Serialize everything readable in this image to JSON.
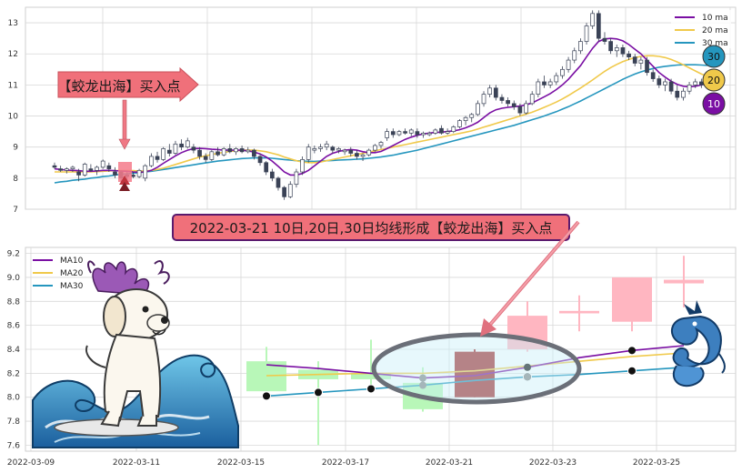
{
  "colors": {
    "ma10": "#7a0fa3",
    "ma20": "#f0c94a",
    "ma30": "#2596be",
    "candle_dark": "#3a4256",
    "up_light": "#ffb6c1",
    "down_light": "#b8f7b8",
    "highlight_red": "#a52a2a",
    "callout_fill": "#f0707a",
    "grid": "#d8d8d8"
  },
  "icons": {
    "dog": "white-dog-with-dragon-horns-surfing-illustration",
    "wave": "ocean-wave-illustration",
    "dragon": "blue-dragon-illustration",
    "buy_marker": "red-up-triangle-icon",
    "down_arrow": "pink-down-arrow-icon",
    "diag_arrow": "pink-diagonal-arrow-icon"
  },
  "top_panel": {
    "callout": "【蛟龙出海】买入点",
    "legend": [
      "10 ma",
      "20 ma",
      "30 ma"
    ],
    "badges": [
      "30",
      "20",
      "10"
    ]
  },
  "banner": "2022-03-21 10日,20日,30日均线形成【蛟龙出海】买入点",
  "bottom_panel": {
    "legend": [
      "MA10",
      "MA20",
      "MA30"
    ]
  },
  "chart_data": [
    {
      "type": "candlestick",
      "ylim": [
        7,
        13.5
      ],
      "y_ticks": [
        7,
        8,
        9,
        10,
        11,
        12,
        13
      ],
      "ohlc": [
        [
          8.4,
          8.5,
          8.3,
          8.35
        ],
        [
          8.3,
          8.4,
          8.2,
          8.25
        ],
        [
          8.25,
          8.35,
          8.15,
          8.3
        ],
        [
          8.3,
          8.4,
          8.2,
          8.35
        ],
        [
          8.2,
          8.3,
          7.9,
          8.1
        ],
        [
          8.1,
          8.5,
          8.05,
          8.45
        ],
        [
          8.3,
          8.45,
          8.2,
          8.25
        ],
        [
          8.25,
          8.4,
          8.1,
          8.35
        ],
        [
          8.35,
          8.6,
          8.3,
          8.55
        ],
        [
          8.4,
          8.5,
          8.2,
          8.3
        ],
        [
          8.2,
          8.35,
          8.0,
          8.1
        ],
        [
          8.2,
          8.25,
          7.9,
          8.0
        ],
        [
          8.1,
          8.2,
          7.95,
          8.05
        ],
        [
          8.1,
          8.2,
          8.0,
          8.05
        ],
        [
          8.05,
          8.3,
          8.0,
          8.25
        ],
        [
          8.0,
          8.45,
          7.9,
          8.4
        ],
        [
          8.4,
          8.8,
          8.35,
          8.7
        ],
        [
          8.7,
          8.85,
          8.5,
          8.6
        ],
        [
          8.6,
          9.0,
          8.55,
          8.95
        ],
        [
          8.9,
          9.1,
          8.7,
          8.8
        ],
        [
          8.8,
          9.2,
          8.75,
          9.1
        ],
        [
          9.1,
          9.25,
          8.9,
          9.0
        ],
        [
          9.0,
          9.3,
          8.95,
          9.2
        ],
        [
          9.0,
          9.1,
          8.8,
          8.9
        ],
        [
          8.9,
          9.0,
          8.6,
          8.7
        ],
        [
          8.7,
          8.8,
          8.5,
          8.6
        ],
        [
          8.6,
          8.9,
          8.55,
          8.85
        ],
        [
          8.85,
          9.0,
          8.7,
          8.75
        ],
        [
          8.75,
          9.0,
          8.7,
          8.95
        ],
        [
          8.95,
          9.1,
          8.8,
          8.85
        ],
        [
          8.85,
          9.0,
          8.75,
          8.95
        ],
        [
          8.95,
          9.05,
          8.8,
          8.85
        ],
        [
          8.85,
          9.0,
          8.8,
          8.9
        ],
        [
          8.9,
          8.95,
          8.6,
          8.7
        ],
        [
          8.7,
          8.8,
          8.4,
          8.5
        ],
        [
          8.5,
          8.55,
          8.1,
          8.2
        ],
        [
          8.2,
          8.3,
          7.9,
          8.0
        ],
        [
          8.0,
          8.05,
          7.6,
          7.7
        ],
        [
          7.7,
          7.75,
          7.3,
          7.4
        ],
        [
          7.4,
          7.9,
          7.35,
          7.8
        ],
        [
          7.8,
          8.3,
          7.7,
          8.2
        ],
        [
          8.2,
          8.7,
          8.1,
          8.6
        ],
        [
          8.6,
          9.1,
          8.5,
          9.0
        ],
        [
          8.9,
          9.05,
          8.8,
          8.95
        ],
        [
          8.95,
          9.1,
          8.85,
          9.0
        ],
        [
          9.0,
          9.2,
          8.9,
          9.1
        ],
        [
          9.0,
          9.05,
          8.8,
          8.9
        ],
        [
          8.9,
          9.0,
          8.8,
          8.95
        ],
        [
          8.85,
          8.95,
          8.75,
          8.9
        ],
        [
          8.9,
          9.0,
          8.7,
          8.8
        ],
        [
          8.8,
          8.9,
          8.6,
          8.7
        ],
        [
          8.7,
          8.8,
          8.55,
          8.75
        ],
        [
          8.75,
          8.95,
          8.7,
          8.9
        ],
        [
          8.9,
          9.1,
          8.85,
          9.05
        ],
        [
          9.05,
          9.2,
          8.95,
          9.15
        ],
        [
          9.3,
          9.6,
          9.2,
          9.5
        ],
        [
          9.5,
          9.6,
          9.3,
          9.4
        ],
        [
          9.4,
          9.55,
          9.35,
          9.5
        ],
        [
          9.5,
          9.6,
          9.4,
          9.45
        ],
        [
          9.45,
          9.6,
          9.35,
          9.55
        ],
        [
          9.5,
          9.6,
          9.3,
          9.4
        ],
        [
          9.4,
          9.5,
          9.3,
          9.45
        ],
        [
          9.4,
          9.5,
          9.35,
          9.45
        ],
        [
          9.45,
          9.6,
          9.4,
          9.55
        ],
        [
          9.6,
          9.7,
          9.4,
          9.45
        ],
        [
          9.45,
          9.6,
          9.4,
          9.5
        ],
        [
          9.5,
          9.7,
          9.45,
          9.65
        ],
        [
          9.65,
          9.9,
          9.6,
          9.85
        ],
        [
          9.85,
          10.0,
          9.7,
          9.95
        ],
        [
          9.95,
          10.1,
          9.8,
          10.05
        ],
        [
          10.05,
          10.5,
          10.0,
          10.4
        ],
        [
          10.4,
          10.8,
          10.3,
          10.7
        ],
        [
          10.7,
          11.0,
          10.6,
          10.9
        ],
        [
          10.9,
          11.0,
          10.5,
          10.6
        ],
        [
          10.6,
          10.7,
          10.4,
          10.5
        ],
        [
          10.5,
          10.6,
          10.3,
          10.4
        ],
        [
          10.4,
          10.5,
          10.2,
          10.3
        ],
        [
          10.3,
          10.4,
          10.0,
          10.1
        ],
        [
          10.1,
          10.5,
          10.05,
          10.4
        ],
        [
          10.4,
          10.8,
          10.35,
          10.7
        ],
        [
          10.7,
          11.2,
          10.6,
          11.1
        ],
        [
          11.1,
          11.3,
          10.9,
          11.0
        ],
        [
          11.0,
          11.2,
          10.9,
          11.1
        ],
        [
          11.1,
          11.4,
          11.0,
          11.3
        ],
        [
          11.3,
          11.6,
          11.2,
          11.5
        ],
        [
          11.5,
          11.9,
          11.4,
          11.8
        ],
        [
          11.8,
          12.2,
          11.7,
          12.1
        ],
        [
          12.1,
          12.5,
          12.0,
          12.4
        ],
        [
          12.4,
          13.0,
          12.3,
          12.9
        ],
        [
          12.9,
          13.4,
          12.8,
          13.3
        ],
        [
          13.3,
          13.4,
          12.4,
          12.5
        ],
        [
          12.5,
          12.7,
          12.3,
          12.4
        ],
        [
          12.4,
          12.5,
          12.0,
          12.1
        ],
        [
          12.1,
          12.3,
          11.9,
          12.2
        ],
        [
          12.2,
          12.3,
          11.9,
          12.0
        ],
        [
          12.0,
          12.1,
          11.8,
          11.9
        ],
        [
          11.9,
          12.0,
          11.6,
          11.7
        ],
        [
          11.7,
          11.9,
          11.5,
          11.8
        ],
        [
          11.8,
          11.9,
          11.3,
          11.4
        ],
        [
          11.4,
          11.5,
          11.1,
          11.2
        ],
        [
          11.2,
          11.3,
          10.9,
          11.0
        ],
        [
          11.0,
          11.2,
          10.8,
          11.1
        ],
        [
          11.1,
          11.2,
          10.7,
          10.8
        ],
        [
          10.8,
          11.0,
          10.5,
          10.6
        ],
        [
          10.6,
          10.9,
          10.5,
          10.8
        ],
        [
          10.8,
          11.1,
          10.7,
          11.0
        ],
        [
          11.0,
          11.2,
          10.9,
          11.1
        ],
        [
          11.1,
          11.2,
          10.9,
          11.0
        ],
        [
          11.0,
          11.3,
          10.95,
          11.2
        ]
      ],
      "ma10": [
        8.3,
        8.28,
        8.26,
        8.25,
        8.24,
        8.22,
        8.22,
        8.23,
        8.25,
        8.25,
        8.24,
        8.23,
        8.22,
        8.2,
        8.19,
        8.2,
        8.25,
        8.35,
        8.48,
        8.6,
        8.72,
        8.82,
        8.9,
        8.95,
        8.96,
        8.95,
        8.93,
        8.92,
        8.9,
        8.9,
        8.9,
        8.9,
        8.88,
        8.84,
        8.78,
        8.68,
        8.55,
        8.38,
        8.2,
        8.1,
        8.1,
        8.15,
        8.25,
        8.4,
        8.55,
        8.7,
        8.8,
        8.86,
        8.9,
        8.92,
        8.9,
        8.85,
        8.82,
        8.82,
        8.86,
        8.95,
        9.05,
        9.15,
        9.25,
        9.32,
        9.38,
        9.42,
        9.45,
        9.47,
        9.48,
        9.5,
        9.52,
        9.56,
        9.62,
        9.7,
        9.8,
        9.95,
        10.1,
        10.2,
        10.25,
        10.28,
        10.3,
        10.32,
        10.36,
        10.42,
        10.52,
        10.62,
        10.72,
        10.85,
        11.0,
        11.18,
        11.4,
        11.62,
        11.9,
        12.18,
        12.4,
        12.48,
        12.5,
        12.48,
        12.42,
        12.3,
        12.15,
        12.0,
        11.8,
        11.6,
        11.4,
        11.25,
        11.12,
        11.02,
        10.96,
        10.94,
        10.96,
        11.0,
        11.05
      ],
      "ma20": [
        8.2,
        8.2,
        8.2,
        8.2,
        8.2,
        8.2,
        8.2,
        8.21,
        8.22,
        8.23,
        8.24,
        8.24,
        8.24,
        8.24,
        8.23,
        8.23,
        8.25,
        8.28,
        8.32,
        8.38,
        8.44,
        8.5,
        8.56,
        8.62,
        8.68,
        8.72,
        8.76,
        8.8,
        8.83,
        8.86,
        8.88,
        8.9,
        8.9,
        8.9,
        8.88,
        8.85,
        8.8,
        8.75,
        8.68,
        8.62,
        8.56,
        8.52,
        8.5,
        8.5,
        8.52,
        8.56,
        8.6,
        8.64,
        8.68,
        8.72,
        8.76,
        8.8,
        8.84,
        8.88,
        8.92,
        8.96,
        9.0,
        9.04,
        9.08,
        9.12,
        9.16,
        9.2,
        9.24,
        9.28,
        9.32,
        9.36,
        9.4,
        9.44,
        9.48,
        9.52,
        9.58,
        9.64,
        9.7,
        9.76,
        9.82,
        9.88,
        9.94,
        10.0,
        10.06,
        10.12,
        10.2,
        10.28,
        10.36,
        10.45,
        10.55,
        10.66,
        10.78,
        10.9,
        11.03,
        11.16,
        11.3,
        11.44,
        11.56,
        11.66,
        11.75,
        11.82,
        11.88,
        11.92,
        11.94,
        11.94,
        11.92,
        11.88,
        11.82,
        11.74,
        11.65,
        11.55,
        11.45,
        11.35,
        11.28
      ],
      "ma30": [
        7.85,
        7.88,
        7.9,
        7.93,
        7.95,
        7.97,
        8.0,
        8.02,
        8.05,
        8.07,
        8.1,
        8.12,
        8.14,
        8.16,
        8.18,
        8.2,
        8.22,
        8.25,
        8.28,
        8.31,
        8.34,
        8.37,
        8.4,
        8.43,
        8.46,
        8.49,
        8.52,
        8.55,
        8.57,
        8.59,
        8.61,
        8.63,
        8.64,
        8.65,
        8.65,
        8.65,
        8.64,
        8.62,
        8.6,
        8.58,
        8.56,
        8.55,
        8.54,
        8.54,
        8.55,
        8.56,
        8.57,
        8.58,
        8.59,
        8.6,
        8.61,
        8.62,
        8.64,
        8.66,
        8.68,
        8.71,
        8.74,
        8.78,
        8.82,
        8.86,
        8.9,
        8.95,
        9.0,
        9.05,
        9.1,
        9.15,
        9.2,
        9.25,
        9.3,
        9.35,
        9.4,
        9.45,
        9.5,
        9.55,
        9.6,
        9.65,
        9.7,
        9.76,
        9.82,
        9.88,
        9.94,
        10.0,
        10.07,
        10.14,
        10.22,
        10.3,
        10.39,
        10.48,
        10.58,
        10.68,
        10.78,
        10.88,
        10.98,
        11.08,
        11.18,
        11.27,
        11.35,
        11.42,
        11.48,
        11.53,
        11.57,
        11.6,
        11.62,
        11.64,
        11.65,
        11.65,
        11.65,
        11.64,
        11.63
      ]
    },
    {
      "type": "candlestick",
      "x_tick_labels": [
        "2022-03-09",
        "2022-03-11",
        "2022-03-15",
        "2022-03-17",
        "2022-03-21",
        "2022-03-23",
        "2022-03-25"
      ],
      "ylim": [
        7.55,
        9.25
      ],
      "y_tick_labels": [
        "7.6",
        "7.8",
        "8.0",
        "8.2",
        "8.4",
        "8.6",
        "8.8",
        "9.0",
        "9.2"
      ],
      "ohlc": [
        [
          8.3,
          8.42,
          8.05,
          8.05
        ],
        [
          8.23,
          8.3,
          7.6,
          8.15
        ],
        [
          8.2,
          8.48,
          8.1,
          8.15
        ],
        [
          8.12,
          8.25,
          7.88,
          7.9
        ],
        [
          8.0,
          8.4,
          8.0,
          8.38
        ],
        [
          8.4,
          8.8,
          8.38,
          8.68
        ],
        [
          8.7,
          8.85,
          8.55,
          8.72
        ],
        [
          8.63,
          9.0,
          8.55,
          9.0
        ],
        [
          8.95,
          9.18,
          8.75,
          8.98
        ]
      ],
      "ma10": [
        8.27,
        8.24,
        8.2,
        8.16,
        8.18,
        8.25,
        8.33,
        8.39,
        8.43
      ],
      "ma20": [
        8.18,
        8.19,
        8.2,
        8.2,
        8.22,
        8.26,
        8.3,
        8.34,
        8.37
      ],
      "ma30": [
        8.01,
        8.04,
        8.07,
        8.1,
        8.14,
        8.17,
        8.19,
        8.22,
        8.25
      ]
    }
  ]
}
